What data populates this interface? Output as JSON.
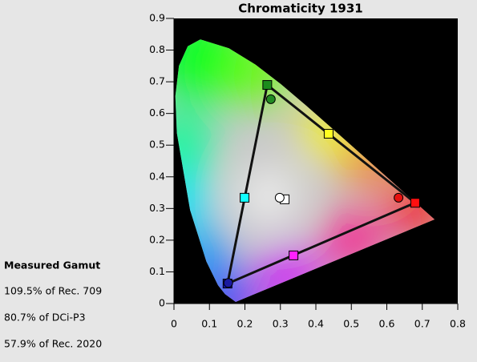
{
  "chart_data": {
    "type": "scatter",
    "title": "Chromaticity 1931",
    "xlim": [
      0,
      0.8
    ],
    "ylim": [
      0,
      0.9
    ],
    "xticks": [
      0,
      0.1,
      0.2,
      0.3,
      0.4,
      0.5,
      0.6,
      0.7,
      0.8
    ],
    "yticks": [
      0,
      0.1,
      0.2,
      0.3,
      0.4,
      0.5,
      0.6,
      0.7,
      0.8,
      0.9
    ],
    "series": [
      {
        "marker": "square",
        "x": [
          0.68,
          0.263,
          0.151,
          0.199,
          0.436,
          0.337,
          0.312
        ],
        "values": [
          0.318,
          0.69,
          0.063,
          0.334,
          0.536,
          0.152,
          0.329
        ],
        "colors": [
          "#ff1010",
          "#1c8c1c",
          "#1010c0",
          "#10ffff",
          "#ffff20",
          "#ff20ff",
          "#ffffff"
        ]
      },
      {
        "marker": "circle",
        "x": [
          0.633,
          0.273,
          0.153,
          0.298
        ],
        "values": [
          0.334,
          0.645,
          0.065,
          0.334
        ],
        "colors": [
          "#e81010",
          "#228b22",
          "#1a1aa0",
          "#ffffff"
        ]
      }
    ]
  },
  "gamut": {
    "title": "Measured Gamut",
    "lines": [
      "109.5% of Rec. 709",
      "80.7% of DCi-P3",
      "57.9% of Rec. 2020"
    ]
  }
}
